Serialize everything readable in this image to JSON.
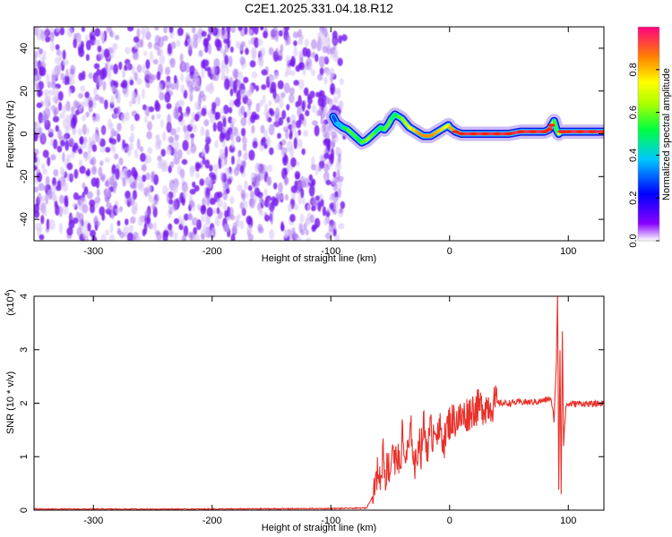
{
  "title": "C2E1.2025.331.04.18.R12",
  "chart_data": [
    {
      "type": "heatmap",
      "xlabel": "Height of straight line (km)",
      "ylabel": "Frequency (Hz)",
      "xlim": [
        -350,
        130
      ],
      "ylim": [
        -50,
        50
      ],
      "xticks": [
        -300,
        -200,
        -100,
        0,
        100
      ],
      "yticks": [
        -40,
        -20,
        0,
        20,
        40
      ],
      "noise_region_x": [
        -350,
        -88
      ],
      "signal_track": {
        "x": [
          -98,
          -95,
          -90,
          -86,
          -82,
          -78,
          -74,
          -70,
          -66,
          -62,
          -58,
          -55,
          -52,
          -49,
          -46,
          -43,
          -40,
          -37,
          -34,
          -31,
          -28,
          -25,
          -22,
          -19,
          -16,
          -13,
          -10,
          -7,
          -4,
          -1,
          0,
          5,
          10,
          20,
          30,
          40,
          50,
          60,
          70,
          80,
          84,
          86,
          88,
          90,
          92,
          94,
          96,
          100,
          110,
          120,
          130
        ],
        "y": [
          8,
          5,
          3,
          2,
          0,
          -2,
          -4,
          -3,
          -1,
          1,
          3,
          2,
          4,
          7,
          9,
          8,
          7,
          5,
          3,
          2,
          1,
          0,
          -1,
          -1,
          -1,
          0,
          1,
          2,
          3,
          4,
          3,
          1,
          0,
          0,
          0,
          0,
          0,
          1,
          1,
          1,
          2,
          4,
          6,
          2,
          0,
          1,
          1,
          1,
          1,
          1,
          1
        ],
        "amplitude": [
          0.25,
          0.3,
          0.45,
          0.55,
          0.6,
          0.5,
          0.55,
          0.6,
          0.65,
          0.5,
          0.5,
          0.55,
          0.6,
          0.55,
          0.5,
          0.55,
          0.6,
          0.65,
          0.7,
          0.75,
          0.8,
          0.85,
          0.85,
          0.85,
          0.85,
          0.85,
          0.8,
          0.8,
          0.75,
          0.7,
          0.75,
          0.9,
          0.95,
          0.95,
          0.95,
          0.95,
          0.95,
          0.95,
          0.95,
          0.95,
          0.95,
          0.9,
          0.6,
          0.5,
          0.6,
          0.9,
          0.95,
          0.95,
          0.95,
          0.95,
          0.95
        ]
      },
      "colorbar": {
        "label": "Normalized spectral amplitude",
        "range": [
          0,
          1
        ],
        "ticks": [
          0.0,
          0.2,
          0.4,
          0.6,
          0.8
        ]
      }
    },
    {
      "type": "line",
      "xlabel": "Height of straight line (km)",
      "ylabel": "SNR (10 * v/v)",
      "y_multiplier": "(x10",
      "y_multiplier_exp": "4",
      "y_multiplier_close": ")",
      "xlim": [
        -350,
        130
      ],
      "ylim": [
        0,
        4
      ],
      "xticks": [
        -300,
        -200,
        -100,
        0,
        100
      ],
      "yticks": [
        0,
        1,
        2,
        3,
        4
      ],
      "color": "#e8312b",
      "series": [
        {
          "x": [
            -350,
            -300,
            -200,
            -100,
            -70,
            -65,
            -62,
            -60,
            -58,
            -56,
            -54,
            -52,
            -50,
            -48,
            -46,
            -44,
            -42,
            -40,
            -38,
            -36,
            -34,
            -32,
            -30,
            -28,
            -26,
            -24,
            -22,
            -20,
            -18,
            -16,
            -14,
            -12,
            -10,
            -8,
            -6,
            -4,
            -2,
            0,
            5,
            10,
            15,
            20,
            25,
            30,
            40,
            50,
            60,
            70,
            80,
            85,
            88,
            90,
            91,
            92,
            93,
            94,
            95,
            96,
            98,
            100,
            110,
            120,
            130
          ],
          "y": [
            0.02,
            0.02,
            0.02,
            0.03,
            0.04,
            0.25,
            0.55,
            0.8,
            0.5,
            1.2,
            0.6,
            0.9,
            0.7,
            1.3,
            0.8,
            1.1,
            0.7,
            1.4,
            1.0,
            1.0,
            1.2,
            1.5,
            0.9,
            0.8,
            1.4,
            1.1,
            1.6,
            1.3,
            1.2,
            1.5,
            1.4,
            1.7,
            1.3,
            1.5,
            1.4,
            1.3,
            1.55,
            1.65,
            1.7,
            1.72,
            1.8,
            1.9,
            1.92,
            1.95,
            2.0,
            2.0,
            2.02,
            2.02,
            2.05,
            2.1,
            1.7,
            2.8,
            4.0,
            0.4,
            3.0,
            0.3,
            3.4,
            1.2,
            1.95,
            1.98,
            2.0,
            1.98,
            2.0
          ]
        }
      ]
    }
  ]
}
